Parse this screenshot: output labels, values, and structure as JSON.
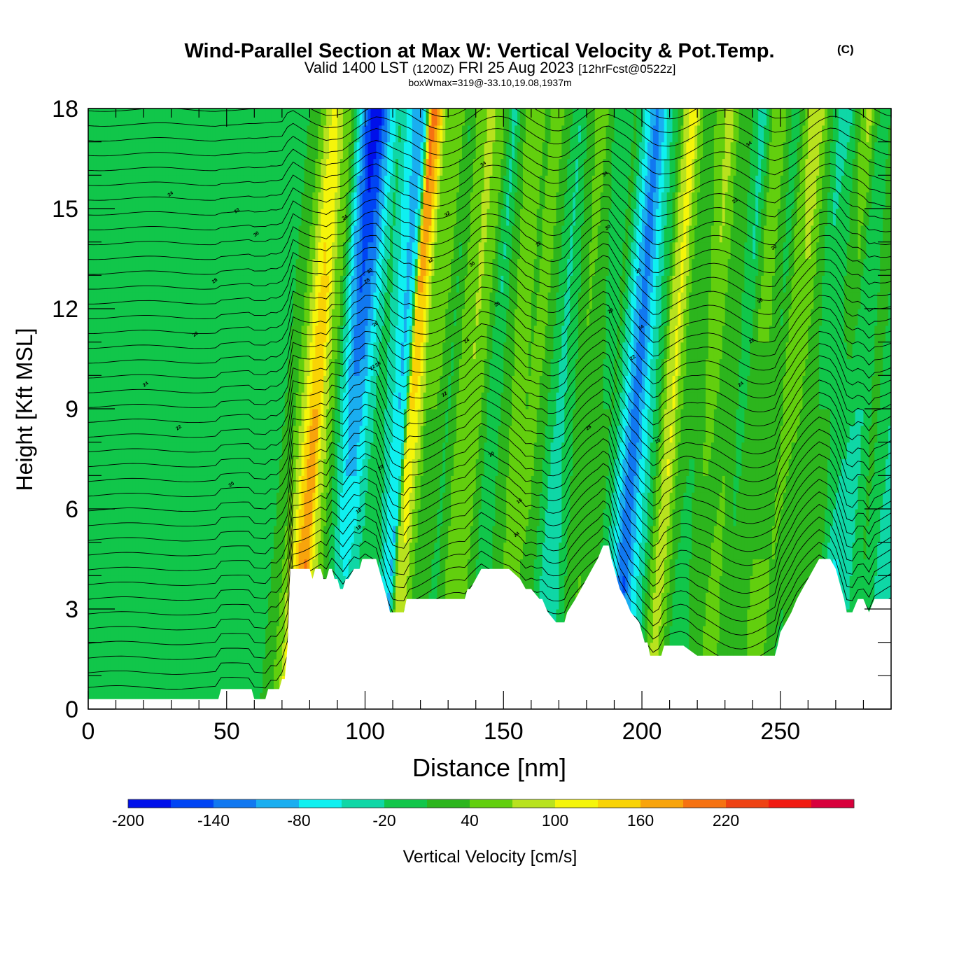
{
  "header": {
    "title_main": "Wind-Parallel Section at Max W: Vertical Velocity & Pot.Temp.",
    "title_mark": "(C)",
    "valid_a": "Valid 1400 LST",
    "valid_b": "(1200Z)",
    "valid_c": "FRI 25 Aug 2023",
    "valid_d": "[12hrFcst@0522z]",
    "box_line": "boxWmax=319@-33.10,19.08,1937m"
  },
  "chart_data": {
    "type": "heatmap",
    "xlabel": "Distance [nm]",
    "ylabel": "Height [Kft MSL]",
    "xlim": [
      0,
      290
    ],
    "ylim": [
      0,
      18
    ],
    "x_ticks": [
      0,
      50,
      100,
      150,
      200,
      250
    ],
    "x_tick_labels": [
      "0",
      "50",
      "100",
      "150",
      "200",
      "250"
    ],
    "y_ticks": [
      0,
      3,
      6,
      9,
      12,
      15,
      18
    ],
    "y_tick_labels": [
      "0",
      "3",
      "6",
      "9",
      "12",
      "15",
      "18"
    ],
    "grid": false,
    "terrain_profile": {
      "x": [
        0,
        47,
        48,
        59,
        60,
        64,
        65,
        69,
        70,
        71,
        72,
        73,
        80,
        81,
        82,
        84,
        85,
        86,
        87,
        88,
        89,
        90,
        91,
        92,
        93,
        94,
        96,
        98,
        99,
        100,
        102,
        104,
        105,
        106,
        107,
        108,
        109,
        110,
        114,
        115,
        117,
        120,
        130,
        136,
        137,
        138,
        140,
        142,
        144,
        146,
        152,
        156,
        158,
        160,
        163,
        164,
        166,
        169,
        172,
        173,
        176,
        178,
        180,
        182,
        184,
        186,
        188,
        189,
        190,
        191,
        192,
        194,
        196,
        199,
        200,
        201,
        202,
        203,
        204,
        205,
        206,
        207,
        208,
        209,
        210,
        212,
        214,
        215,
        220,
        226,
        236,
        246,
        248,
        249,
        250,
        252,
        254,
        256,
        258,
        260,
        262,
        264,
        266,
        268,
        270,
        271,
        272,
        273,
        274,
        276,
        278,
        280,
        282,
        284,
        285,
        290
      ],
      "height_kft": [
        0.3,
        0.3,
        0.6,
        0.6,
        0.3,
        0.3,
        0.6,
        0.6,
        0.9,
        0.9,
        1.9,
        4.2,
        4.2,
        3.9,
        4.2,
        4.2,
        3.9,
        3.9,
        4.2,
        4.2,
        3.9,
        3.9,
        3.6,
        3.6,
        3.9,
        3.9,
        4.2,
        4.2,
        4.5,
        4.5,
        4.5,
        4.5,
        4.2,
        3.9,
        3.6,
        3.3,
        2.9,
        2.9,
        2.9,
        3.3,
        3.3,
        3.3,
        3.3,
        3.3,
        3.6,
        3.6,
        3.9,
        4.2,
        4.2,
        4.2,
        4.2,
        3.9,
        3.6,
        3.6,
        3.3,
        3.3,
        2.9,
        2.6,
        2.6,
        2.9,
        3.3,
        3.6,
        3.9,
        4.2,
        4.5,
        4.9,
        4.9,
        4.5,
        4.2,
        3.9,
        3.6,
        3.3,
        2.9,
        2.6,
        2.3,
        2.0,
        2.0,
        1.6,
        1.6,
        1.6,
        1.6,
        1.6,
        1.9,
        1.9,
        1.9,
        1.9,
        1.9,
        1.9,
        1.6,
        1.6,
        1.6,
        1.6,
        1.6,
        1.9,
        2.3,
        2.6,
        2.9,
        3.3,
        3.6,
        3.9,
        4.2,
        4.5,
        4.5,
        4.5,
        4.2,
        3.9,
        3.6,
        3.3,
        2.9,
        2.9,
        3.3,
        3.3,
        2.9,
        3.3,
        3.3,
        3.3
      ]
    },
    "vertical_velocity_bands": {
      "x": [
        0,
        8,
        20,
        35,
        45,
        52,
        58,
        64,
        68,
        71,
        73,
        75,
        77,
        80,
        84,
        87,
        90,
        93,
        97,
        101,
        104,
        106,
        108,
        110,
        114,
        118,
        122,
        126,
        130,
        134,
        138,
        142,
        146,
        150,
        154,
        158,
        162,
        166,
        170,
        174,
        178,
        182,
        186,
        188,
        190,
        192,
        195,
        198,
        200,
        203,
        205,
        208,
        212,
        216,
        220,
        224,
        228,
        232,
        236,
        240,
        244,
        248,
        252,
        256,
        260,
        263,
        266,
        269,
        272,
        276,
        280,
        284,
        290
      ],
      "w_cms_near_surface": [
        -10,
        -10,
        0,
        10,
        -15,
        10,
        -10,
        20,
        60,
        140,
        210,
        230,
        120,
        60,
        40,
        0,
        -20,
        -10,
        20,
        10,
        -60,
        -90,
        40,
        70,
        40,
        10,
        0,
        40,
        60,
        30,
        0,
        0,
        30,
        50,
        30,
        0,
        -50,
        -40,
        10,
        50,
        40,
        0,
        -60,
        -110,
        -150,
        -100,
        -60,
        -10,
        40,
        90,
        60,
        10,
        -20,
        10,
        40,
        60,
        30,
        10,
        40,
        60,
        30,
        -10,
        20,
        60,
        40,
        -40,
        -100,
        -60,
        -20,
        0,
        -20,
        -30,
        -10
      ],
      "w_cms_aloft": [
        -20,
        -20,
        -20,
        -15,
        -15,
        -10,
        -5,
        10,
        40,
        90,
        110,
        90,
        60,
        30,
        -130,
        -200,
        -170,
        -90,
        -20,
        -80,
        -100,
        -60,
        220,
        190,
        40,
        70,
        10,
        60,
        80,
        50,
        -30,
        40,
        70,
        30,
        60,
        20,
        -20,
        30,
        60,
        10,
        -20,
        20,
        -60,
        -100,
        -120,
        -80,
        -20,
        20,
        90,
        120,
        60,
        20,
        50,
        90,
        30,
        10,
        -40,
        60,
        40,
        -20,
        70,
        100,
        30,
        -40,
        -20,
        40,
        90,
        20,
        -20,
        50,
        -10,
        -20,
        -20
      ]
    },
    "contour_labels": [
      "24",
      "32",
      "30",
      "28",
      "26",
      "24",
      "22",
      "20",
      "34",
      "32",
      "30",
      "26",
      "24",
      "22",
      "20",
      "18",
      "32",
      "34",
      "30",
      "26",
      "24",
      "22",
      "20",
      "28",
      "26",
      "24",
      "22",
      "16",
      "34",
      "30",
      "26",
      "24",
      "22",
      "30",
      "34",
      "30",
      "28",
      "26",
      "24",
      "22",
      "20",
      "18"
    ],
    "colorbar": {
      "label": "Vertical Velocity [cm/s]",
      "boundaries": [
        -200,
        -170,
        -140,
        -110,
        -80,
        -50,
        -20,
        10,
        40,
        70,
        100,
        130,
        160,
        190,
        220,
        250
      ],
      "tick_values": [
        -200,
        -140,
        -80,
        -20,
        40,
        100,
        160,
        220
      ],
      "tick_labels": [
        "-200",
        "-140",
        "-80",
        "-20",
        "40",
        "100",
        "160",
        "220"
      ],
      "colors": [
        "#0010ea",
        "#0044f4",
        "#1178f0",
        "#1aaef0",
        "#0ff0f0",
        "#0fd7a6",
        "#11c64a",
        "#2cb51d",
        "#62cf0e",
        "#b8e21e",
        "#f5f50a",
        "#f9d305",
        "#f8a40c",
        "#f67211",
        "#ee4213",
        "#f11a11",
        "#d8003c"
      ]
    }
  }
}
